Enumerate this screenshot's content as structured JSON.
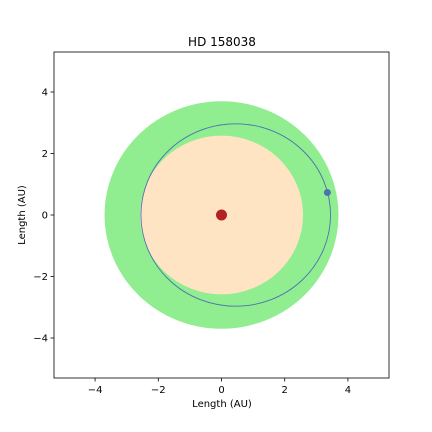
{
  "chart_data": {
    "type": "scatter",
    "title": "HD 158038",
    "xlabel": "Length (AU)",
    "ylabel": "Length (AU)",
    "xlim": [
      -5.3,
      5.3
    ],
    "ylim": [
      -5.3,
      5.3
    ],
    "xticks": [
      -4,
      -2,
      0,
      2,
      4
    ],
    "yticks": [
      -4,
      -2,
      0,
      2,
      4
    ],
    "tick_labels": {
      "x": [
        "−4",
        "−2",
        "0",
        "2",
        "4"
      ],
      "y": [
        "−4",
        "−2",
        "0",
        "2",
        "4"
      ]
    },
    "grid": false,
    "regions": [
      {
        "kind": "disk",
        "radius_au": 3.7,
        "color": "#90ee90"
      },
      {
        "kind": "disk",
        "radius_au": 2.58,
        "color": "#ffe4c4",
        "center": [
          0,
          0
        ]
      }
    ],
    "orbit": {
      "semi_major_au": 3.0,
      "eccentricity": 0.15,
      "periastron_angle_deg": 0,
      "color": "#4c72b0"
    },
    "star": {
      "x": 0,
      "y": 0,
      "color": "#b22222"
    },
    "planet": {
      "x": 3.35,
      "y": 0.73,
      "color": "#4c72b0"
    }
  }
}
